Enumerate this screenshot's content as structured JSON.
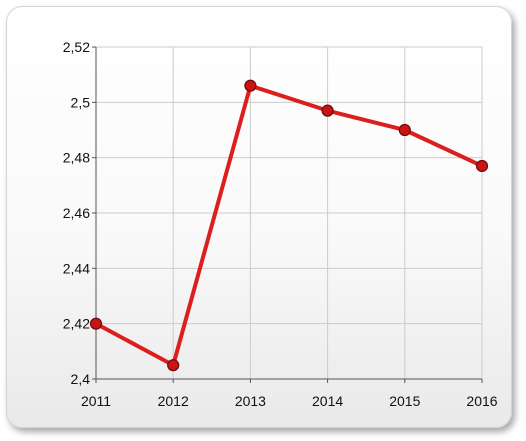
{
  "chart_data": {
    "type": "line",
    "title": "",
    "xlabel": "",
    "ylabel": "",
    "x": [
      "2011",
      "2012",
      "2013",
      "2014",
      "2015",
      "2016"
    ],
    "series": [
      {
        "values": [
          2.42,
          2.405,
          2.506,
          2.497,
          2.49,
          2.477
        ]
      }
    ],
    "ylim": [
      2.4,
      2.52
    ],
    "yticks": [
      {
        "value": 2.4,
        "label": "2,4"
      },
      {
        "value": 2.42,
        "label": "2,42"
      },
      {
        "value": 2.44,
        "label": "2,44"
      },
      {
        "value": 2.46,
        "label": "2,46"
      },
      {
        "value": 2.48,
        "label": "2,48"
      },
      {
        "value": 2.5,
        "label": "2,5"
      },
      {
        "value": 2.52,
        "label": "2,52"
      }
    ],
    "grid": true,
    "legend": "none",
    "colors": {
      "line": "#dd1e1e",
      "marker_fill": "#c81414",
      "marker_stroke": "#6e0a0a",
      "grid": "#cccccc",
      "axis": "#555555"
    }
  }
}
